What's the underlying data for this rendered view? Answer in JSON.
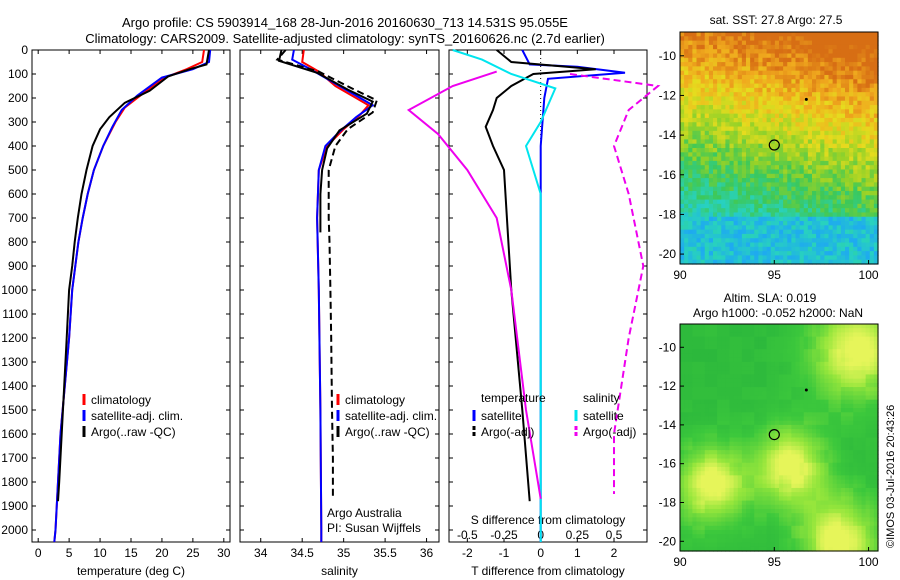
{
  "titles": {
    "line1": "Argo profile: CS 5903914_168 28-Jun-2016 20160630_713 14.531S 95.055E",
    "line2": "Climatology: CARS2009. Satellite-adjusted climatology: synTS_20160626.nc (2.7d earlier)"
  },
  "colors": {
    "climatology": "#ff0000",
    "satellite": "#0000ff",
    "argo": "#000000",
    "salinity_satellite": "#00e5ee",
    "salinity_argo": "#ee00ee"
  },
  "chart_data": [
    {
      "type": "line",
      "id": "temperature",
      "xlabel": "temperature (deg C)",
      "xlim": [
        -1,
        31
      ],
      "ylim": [
        2050,
        0
      ],
      "xticks": [
        0,
        5,
        10,
        15,
        20,
        25,
        30
      ],
      "yticks": [
        0,
        100,
        200,
        300,
        400,
        500,
        600,
        700,
        800,
        900,
        1000,
        1100,
        1200,
        1300,
        1400,
        1500,
        1600,
        1700,
        1800,
        1900,
        2000
      ],
      "legend": [
        "climatology",
        "satellite-adj. clim.",
        "Argo(..raw -QC)"
      ],
      "series": [
        {
          "name": "climatology",
          "style": "solid",
          "points": [
            [
              26.8,
              0
            ],
            [
              26.5,
              50
            ],
            [
              24,
              80
            ],
            [
              20,
              120
            ],
            [
              17,
              180
            ],
            [
              14,
              240
            ],
            [
              12.5,
              300
            ],
            [
              10.5,
              400
            ],
            [
              9,
              500
            ],
            [
              8,
              600
            ],
            [
              7.2,
              700
            ],
            [
              6.5,
              800
            ],
            [
              6,
              900
            ],
            [
              5.5,
              1000
            ],
            [
              5,
              1200
            ],
            [
              4.3,
              1400
            ],
            [
              3.6,
              1600
            ],
            [
              3.2,
              1800
            ],
            [
              2.8,
              2000
            ],
            [
              2.6,
              2050
            ]
          ]
        },
        {
          "name": "satellite-adj. clim.",
          "style": "solid",
          "points": [
            [
              27.8,
              0
            ],
            [
              27.6,
              50
            ],
            [
              25,
              80
            ],
            [
              20,
              115
            ],
            [
              16,
              190
            ],
            [
              13.5,
              250
            ],
            [
              12,
              320
            ],
            [
              10.5,
              400
            ],
            [
              9,
              500
            ],
            [
              8,
              600
            ],
            [
              7.2,
              700
            ],
            [
              6.5,
              800
            ],
            [
              6,
              900
            ],
            [
              5.5,
              1000
            ],
            [
              5,
              1200
            ],
            [
              4.3,
              1400
            ],
            [
              3.6,
              1600
            ],
            [
              3.2,
              1800
            ],
            [
              2.8,
              2000
            ],
            [
              2.6,
              2050
            ]
          ]
        },
        {
          "name": "Argo(..raw -QC)",
          "style": "solid",
          "points": [
            [
              27.6,
              0
            ],
            [
              27.2,
              60
            ],
            [
              24.5,
              80
            ],
            [
              21,
              110
            ],
            [
              18,
              170
            ],
            [
              14,
              220
            ],
            [
              11.5,
              280
            ],
            [
              10,
              330
            ],
            [
              8.8,
              400
            ],
            [
              7.8,
              500
            ],
            [
              7,
              600
            ],
            [
              6.4,
              700
            ],
            [
              5.9,
              800
            ],
            [
              5.5,
              900
            ],
            [
              5,
              1000
            ],
            [
              4.6,
              1200
            ],
            [
              4.2,
              1400
            ],
            [
              3.8,
              1600
            ],
            [
              3.4,
              1800
            ],
            [
              3.2,
              1880
            ]
          ]
        }
      ]
    },
    {
      "type": "line",
      "id": "salinity",
      "xlabel": "salinity",
      "xlim": [
        33.75,
        36.15
      ],
      "ylim": [
        2050,
        0
      ],
      "xticks": [
        34,
        34.5,
        35,
        35.5,
        36
      ],
      "legend": [
        "climatology",
        "satellite-adj. clim.",
        "Argo(..raw -QC)"
      ],
      "annotations": [
        "Argo Australia",
        "PI: Susan Wijffels"
      ],
      "series": [
        {
          "name": "climatology",
          "style": "solid",
          "points": [
            [
              34.52,
              0
            ],
            [
              34.5,
              50
            ],
            [
              34.7,
              90
            ],
            [
              34.9,
              150
            ],
            [
              35.15,
              200
            ],
            [
              35.3,
              230
            ],
            [
              35.2,
              270
            ],
            [
              35,
              330
            ],
            [
              34.8,
              400
            ],
            [
              34.7,
              500
            ],
            [
              34.68,
              700
            ],
            [
              34.7,
              1000
            ],
            [
              34.72,
              1500
            ],
            [
              34.73,
              2000
            ],
            [
              34.73,
              2050
            ]
          ]
        },
        {
          "name": "satellite-adj. clim.",
          "style": "solid",
          "points": [
            [
              34.4,
              0
            ],
            [
              34.38,
              40
            ],
            [
              34.6,
              80
            ],
            [
              34.9,
              140
            ],
            [
              35.2,
              200
            ],
            [
              35.35,
              230
            ],
            [
              35.15,
              280
            ],
            [
              34.95,
              340
            ],
            [
              34.78,
              400
            ],
            [
              34.7,
              500
            ],
            [
              34.68,
              700
            ],
            [
              34.7,
              1000
            ],
            [
              34.72,
              1500
            ],
            [
              34.73,
              2000
            ],
            [
              34.73,
              2050
            ]
          ]
        },
        {
          "name": "Argo(..raw -QC)",
          "style": "dashed",
          "points": [
            [
              34.3,
              0
            ],
            [
              34.2,
              40
            ],
            [
              34.7,
              90
            ],
            [
              35.1,
              160
            ],
            [
              35.4,
              210
            ],
            [
              35.35,
              260
            ],
            [
              35.05,
              330
            ],
            [
              34.9,
              400
            ],
            [
              34.82,
              500
            ],
            [
              34.82,
              600
            ],
            [
              34.82,
              700
            ],
            [
              34.83,
              800
            ],
            [
              34.84,
              1000
            ],
            [
              34.85,
              1200
            ],
            [
              34.86,
              1500
            ],
            [
              34.87,
              1700
            ],
            [
              34.87,
              1870
            ]
          ]
        },
        {
          "name": "Argo(..raw -QC)",
          "style": "solid",
          "points": [
            [
              34.25,
              0
            ],
            [
              34.22,
              45
            ],
            [
              34.68,
              95
            ],
            [
              35.05,
              165
            ],
            [
              35.35,
              215
            ],
            [
              35.28,
              265
            ],
            [
              34.95,
              335
            ],
            [
              34.8,
              410
            ],
            [
              34.74,
              500
            ],
            [
              34.72,
              600
            ],
            [
              34.72,
              700
            ],
            [
              34.72,
              760
            ]
          ]
        }
      ]
    },
    {
      "type": "line",
      "id": "difference",
      "xlabel": "T difference from climatology",
      "xlabel2": "S difference from climatology",
      "xlim": [
        -2.5,
        2.9
      ],
      "ylim": [
        2050,
        0
      ],
      "xticks": [
        -2,
        -1,
        0,
        1,
        2
      ],
      "xticks2": [
        {
          "value": -0.5,
          "label": "-0.5"
        },
        {
          "value": -0.25,
          "label": "-0.25"
        },
        {
          "value": 0,
          "label": "0"
        },
        {
          "value": 0.25,
          "label": "0.25"
        },
        {
          "value": 0.5,
          "label": "0.5"
        }
      ],
      "legend_temperature_title": "temperature",
      "legend_salinity_title": "salinity",
      "legend": [
        "satellite",
        "Argo(-adj)"
      ],
      "series": [
        {
          "name": "T satellite",
          "style": "solid",
          "color": "#0000ff",
          "points": [
            [
              -0.5,
              0
            ],
            [
              -0.3,
              60
            ],
            [
              1,
              70
            ],
            [
              2.3,
              95
            ],
            [
              0.2,
              120
            ],
            [
              0.1,
              200
            ],
            [
              0,
              400
            ],
            [
              0,
              2050
            ]
          ]
        },
        {
          "name": "T Argo(-adj)",
          "style": "solid",
          "color": "#000000",
          "points": [
            [
              -1.2,
              0
            ],
            [
              -0.8,
              50
            ],
            [
              1.5,
              80
            ],
            [
              -0.2,
              100
            ],
            [
              -0.8,
              150
            ],
            [
              -1.2,
              200
            ],
            [
              -1.3,
              250
            ],
            [
              -1.5,
              320
            ],
            [
              -1.3,
              400
            ],
            [
              -1,
              500
            ],
            [
              -0.8,
              1000
            ],
            [
              -0.5,
              1500
            ],
            [
              -0.3,
              1880
            ]
          ]
        },
        {
          "name": "S satellite",
          "style": "solid",
          "color": "#00e5ee",
          "points": [
            [
              -0.6,
              0
            ],
            [
              -0.4,
              40
            ],
            [
              -0.2,
              100
            ],
            [
              0.1,
              160
            ],
            [
              0,
              300
            ],
            [
              -0.1,
              400
            ],
            [
              0,
              600
            ],
            [
              0,
              2050
            ]
          ]
        },
        {
          "name": "S Argo(-adj)",
          "style": "solid",
          "color": "#ee00ee",
          "points": [
            [
              -0.3,
              90
            ],
            [
              -0.6,
              150
            ],
            [
              -0.9,
              250
            ],
            [
              -0.7,
              350
            ],
            [
              -0.5,
              500
            ],
            [
              -0.3,
              700
            ],
            [
              -0.2,
              1000
            ],
            [
              -0.1,
              1500
            ],
            [
              0,
              1870
            ]
          ]
        },
        {
          "name": "S Argo(-adj) dashed",
          "style": "dashed",
          "color": "#ee00ee",
          "points": [
            [
              0.2,
              100
            ],
            [
              0.8,
              150
            ],
            [
              0.6,
              250
            ],
            [
              0.5,
              400
            ],
            [
              0.6,
              600
            ],
            [
              0.7,
              900
            ],
            [
              0.6,
              1200
            ],
            [
              0.5,
              1600
            ],
            [
              0.5,
              1850
            ]
          ]
        }
      ]
    },
    {
      "type": "heatmap",
      "id": "sst-map",
      "title": "sat. SST: 27.8 Argo: 27.5",
      "xlim": [
        90,
        100.5
      ],
      "ylim": [
        -20.5,
        -8.8
      ],
      "xticks": [
        90,
        95,
        100
      ],
      "yticks": [
        -10,
        -12,
        -14,
        -16,
        -18,
        -20
      ],
      "argo_position": [
        95,
        -14.5
      ],
      "marker": [
        96.7,
        -12.2
      ]
    },
    {
      "type": "heatmap",
      "id": "sla-map",
      "title": "Altim. SLA: 0.019",
      "subtitle": "Argo h1000: -0.052 h2000: NaN",
      "xlim": [
        90,
        100.5
      ],
      "ylim": [
        -20.5,
        -8.8
      ],
      "xticks": [
        90,
        95,
        100
      ],
      "yticks": [
        -10,
        -12,
        -14,
        -16,
        -18,
        -20
      ],
      "argo_position": [
        95,
        -14.5
      ],
      "marker": [
        96.7,
        -12.2
      ]
    }
  ],
  "footer": {
    "credit": "©IMOS 03-Jul-2016 20:43:26"
  }
}
